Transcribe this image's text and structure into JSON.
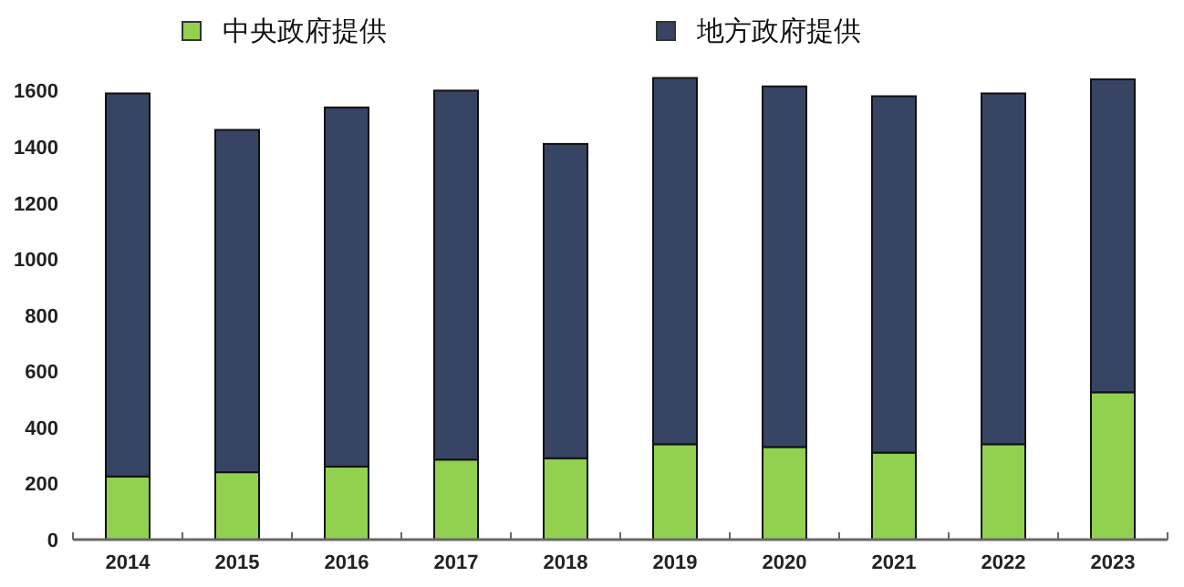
{
  "chart_data": {
    "type": "bar",
    "stacked": true,
    "categories": [
      "2014",
      "2015",
      "2016",
      "2017",
      "2018",
      "2019",
      "2020",
      "2021",
      "2022",
      "2023"
    ],
    "series": [
      {
        "name": "中央政府提供",
        "color": "#92d050",
        "values": [
          225,
          240,
          260,
          285,
          290,
          340,
          330,
          310,
          340,
          525
        ]
      },
      {
        "name": "地方政府提供",
        "color": "#374463",
        "values": [
          1365,
          1220,
          1280,
          1315,
          1120,
          1305,
          1285,
          1270,
          1250,
          1115
        ]
      }
    ],
    "ylim": [
      0,
      1650
    ],
    "yticks": [
      0,
      200,
      400,
      600,
      800,
      1000,
      1200,
      1400,
      1600
    ],
    "grid": false,
    "legend": "top"
  }
}
